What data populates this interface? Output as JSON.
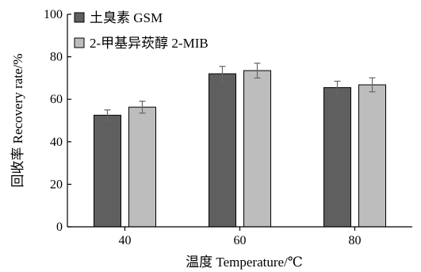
{
  "chart_data": {
    "type": "bar",
    "categories": [
      "40",
      "60",
      "80"
    ],
    "series": [
      {
        "name": "土臭素 GSM",
        "values": [
          52.5,
          72.0,
          65.5
        ],
        "errors": [
          2.5,
          3.5,
          3.0
        ],
        "color": "#5f5f5f"
      },
      {
        "name": "2-甲基异莰醇 2-MIB",
        "values": [
          56.3,
          73.5,
          66.8
        ],
        "errors": [
          2.8,
          3.5,
          3.3
        ],
        "color": "#bdbdbd"
      }
    ],
    "xlabel": "温度 Temperature/℃",
    "ylabel": "回收率 Recovery rate/%",
    "ylim": [
      0,
      100
    ],
    "yticks": [
      "0",
      "20",
      "40",
      "60",
      "80",
      "100"
    ],
    "grid": false,
    "legend": "top-left"
  }
}
